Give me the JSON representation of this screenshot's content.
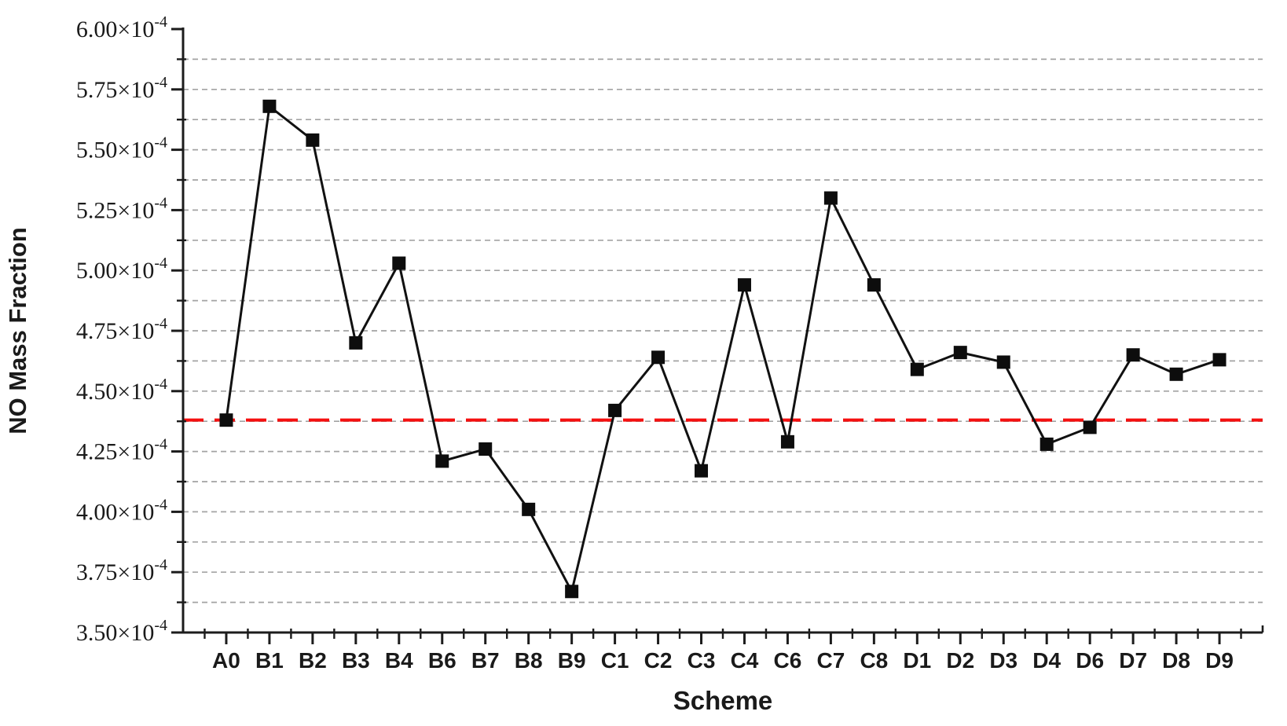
{
  "page": {
    "background": "#ffffff"
  },
  "chart_data": {
    "type": "line",
    "title": "",
    "xlabel": "Scheme",
    "ylabel": "NO Mass Fraction",
    "categories": [
      "A0",
      "B1",
      "B2",
      "B3",
      "B4",
      "B6",
      "B7",
      "B8",
      "B9",
      "C1",
      "C2",
      "C3",
      "C4",
      "C6",
      "C7",
      "C8",
      "D1",
      "D2",
      "D3",
      "D4",
      "D6",
      "D7",
      "D8",
      "D9"
    ],
    "value_scale": "1e-4",
    "value_unit_label": "×10⁻⁴",
    "series": [
      {
        "name": "NO mass fraction",
        "marker": "filled-square",
        "color": "#111111",
        "values": [
          4.38,
          5.68,
          5.54,
          4.7,
          5.03,
          4.21,
          4.26,
          4.01,
          3.67,
          4.42,
          4.64,
          4.17,
          4.94,
          4.29,
          5.3,
          4.94,
          4.59,
          4.66,
          4.62,
          4.28,
          4.35,
          4.65,
          4.57,
          4.63
        ]
      }
    ],
    "reference_line": {
      "value": 4.38,
      "style": "dashed",
      "color": "#f50f0f"
    },
    "y_axis": {
      "min": 3.5,
      "max": 6.0,
      "major_tick_step": 0.25,
      "minor_tick_step": 0.125,
      "exponent": "-4",
      "tick_labels": [
        "6.00×10⁻⁴",
        "5.75×10⁻⁴",
        "5.50×10⁻⁴",
        "5.25×10⁻⁴",
        "5.00×10⁻⁴",
        "4.75×10⁻⁴",
        "4.50×10⁻⁴",
        "4.25×10⁻⁴",
        "4.00×10⁻⁴",
        "3.75×10⁻⁴",
        "3.50×10⁻⁴"
      ]
    },
    "x_axis": {
      "label": "Scheme",
      "tick_labels": [
        "A0",
        "B1",
        "B2",
        "B3",
        "B4",
        "B6",
        "B7",
        "B8",
        "B9",
        "C1",
        "C2",
        "C3",
        "C4",
        "C6",
        "C7",
        "C8",
        "D1",
        "D2",
        "D3",
        "D4",
        "D6",
        "D7",
        "D8",
        "D9"
      ]
    },
    "grid": {
      "horizontal_dashed": true,
      "color": "#a3a3a3"
    },
    "legend": {
      "visible": false
    },
    "colors": {
      "axis": "#1c1c1c",
      "text": "#1a1a1a"
    }
  }
}
